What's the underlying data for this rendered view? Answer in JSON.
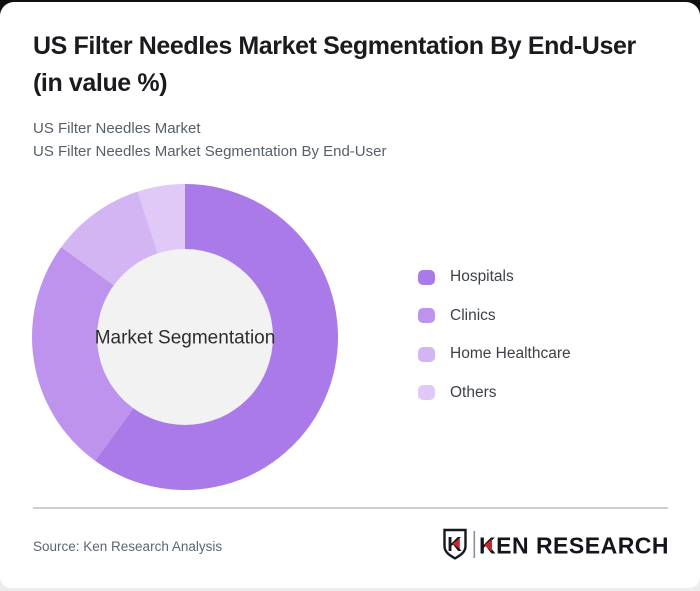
{
  "header": {
    "title_line1": "US Filter Needles Market Segmentation By End-User",
    "title_line2": "(in value %)",
    "subtitle_line1": "US Filter Needles Market",
    "subtitle_line2": "US Filter Needles Market Segmentation By End-User"
  },
  "chart_data": {
    "type": "pie",
    "variant": "donut",
    "title": "US Filter Needles Market Segmentation By End-User (in value %)",
    "center_label": "Market Segmentation",
    "categories": [
      "Hospitals",
      "Clinics",
      "Home Healthcare",
      "Others"
    ],
    "values": [
      60,
      25,
      10,
      5
    ],
    "unit": "value %",
    "colors": [
      "#a97ae8",
      "#bd93ee",
      "#d3b5f3",
      "#e0c9f7"
    ],
    "inner_hole_color": "#f2f2f2",
    "center_label_color": "#2e2e2e",
    "start_angle_deg": 0,
    "direction": "clockwise",
    "legend_position": "right"
  },
  "legend": {
    "items": [
      {
        "label": "Hospitals",
        "color": "#a97ae8"
      },
      {
        "label": "Clinics",
        "color": "#bd93ee"
      },
      {
        "label": "Home Healthcare",
        "color": "#d3b5f3"
      },
      {
        "label": "Others",
        "color": "#e0c9f7"
      }
    ]
  },
  "footer": {
    "source_text": "Source: Ken Research Analysis",
    "logo_monogram": "K",
    "logo_text": "KEN RESEARCH",
    "logo_accent_color": "#cf2429",
    "logo_icon": "ken-research-shield-k-icon"
  }
}
